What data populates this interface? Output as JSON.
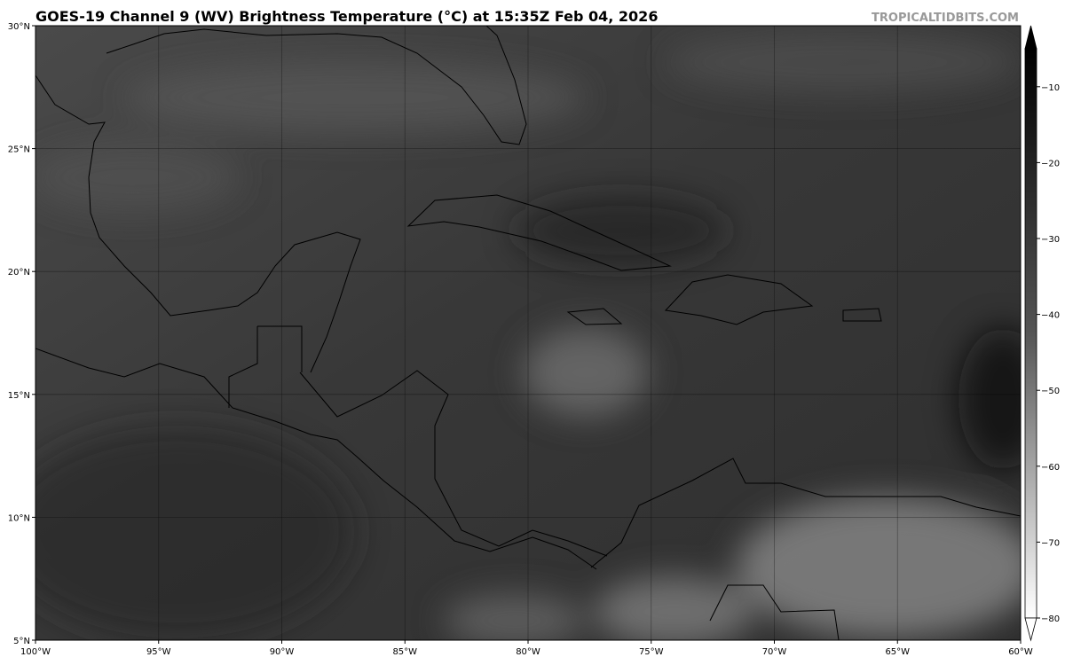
{
  "header": {
    "title": "GOES-19 Channel 9 (WV) Brightness Temperature (°C) at 15:35Z Feb 04, 2026",
    "watermark": "TROPICALTIDBITS.COM"
  },
  "map": {
    "lon_lim": [
      -100,
      -60
    ],
    "lat_lim": [
      5,
      30
    ],
    "lon_ticks": [
      {
        "value": -100,
        "label": "100°W"
      },
      {
        "value": -95,
        "label": "95°W"
      },
      {
        "value": -90,
        "label": "90°W"
      },
      {
        "value": -85,
        "label": "85°W"
      },
      {
        "value": -80,
        "label": "80°W"
      },
      {
        "value": -75,
        "label": "75°W"
      },
      {
        "value": -70,
        "label": "70°W"
      },
      {
        "value": -65,
        "label": "65°W"
      },
      {
        "value": -60,
        "label": "60°W"
      }
    ],
    "lat_ticks": [
      {
        "value": 5,
        "label": "5°N"
      },
      {
        "value": 10,
        "label": "10°N"
      },
      {
        "value": 15,
        "label": "15°N"
      },
      {
        "value": 20,
        "label": "20°N"
      },
      {
        "value": 25,
        "label": "25°N"
      },
      {
        "value": 30,
        "label": "30°N"
      }
    ]
  },
  "colorbar": {
    "lim": [
      -80,
      -5
    ],
    "ticks": [
      {
        "value": -10,
        "label": "−10"
      },
      {
        "value": -20,
        "label": "−20"
      },
      {
        "value": -30,
        "label": "−30"
      },
      {
        "value": -40,
        "label": "−40"
      },
      {
        "value": -50,
        "label": "−50"
      },
      {
        "value": -60,
        "label": "−60"
      },
      {
        "value": -70,
        "label": "−70"
      },
      {
        "value": -80,
        "label": "−80"
      }
    ]
  }
}
